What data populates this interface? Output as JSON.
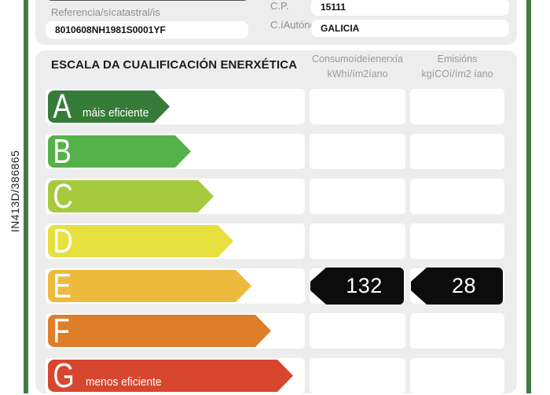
{
  "form": {
    "reference_label": "Referencia/sícatastral/is",
    "reference_value": "8010608NH1981S0001YF",
    "cp_label": "C.P.",
    "cp_value": "15111",
    "ca_label": "C.íAutónoma",
    "ca_value": "GALICIA"
  },
  "sidebar": {
    "registry_code": "IN413D/386865"
  },
  "scale": {
    "title": "ESCALA DA CUALIFICACIÓN ENERXÉTICA",
    "columns": [
      {
        "line1": "Consumoídeíenerxía",
        "line2": "kWhí/ím2íano"
      },
      {
        "line1": "Emisións",
        "line2": "kgíCOí/ím2 íano"
      }
    ],
    "grades": [
      {
        "letter": "A",
        "note": "máis eficiente",
        "color": "#377b39"
      },
      {
        "letter": "B",
        "note": "",
        "color": "#55b14a"
      },
      {
        "letter": "C",
        "note": "",
        "color": "#a6ca3e"
      },
      {
        "letter": "D",
        "note": "",
        "color": "#e7e03f"
      },
      {
        "letter": "E",
        "note": "",
        "color": "#eeba3e"
      },
      {
        "letter": "F",
        "note": "",
        "color": "#de7e28"
      },
      {
        "letter": "G",
        "note": "menos eficiente",
        "color": "#d7462e"
      }
    ],
    "ratings": {
      "grade": "E",
      "consumption": "132",
      "emissions": "28"
    },
    "colors": {
      "rating_arrow": "#0c0c0c",
      "accent_line": "#427a42"
    }
  }
}
